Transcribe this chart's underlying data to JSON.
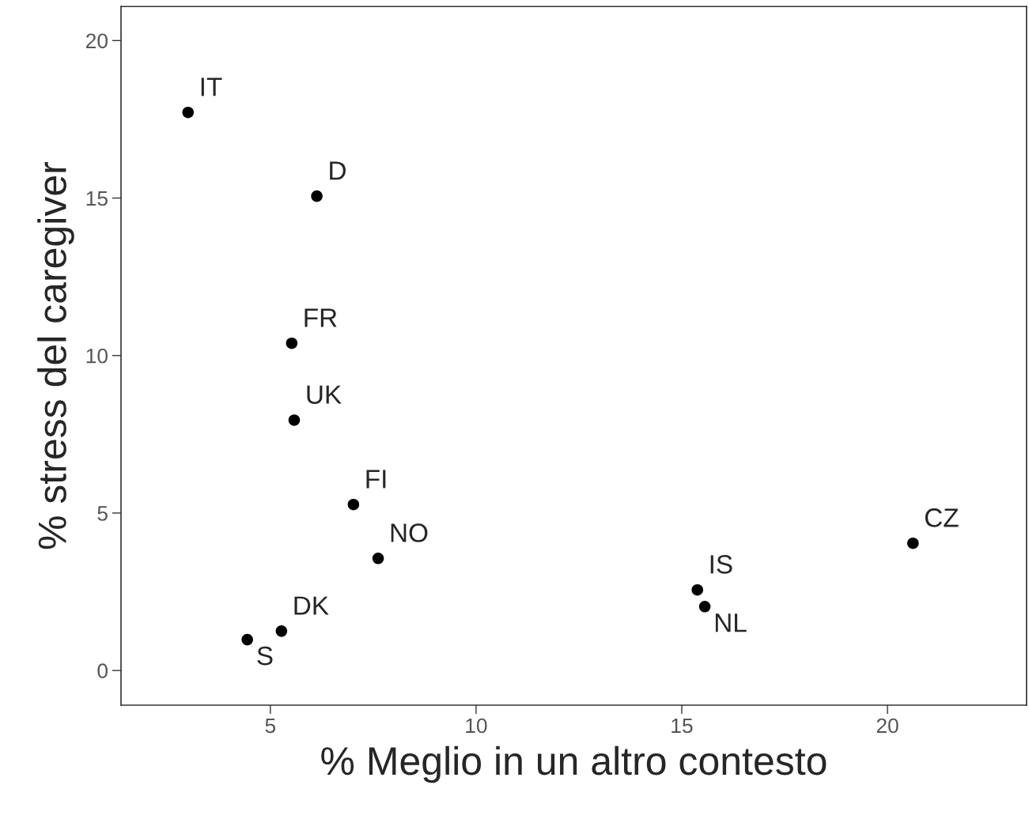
{
  "chart_data": {
    "type": "scatter",
    "xlabel": "% Meglio in un altro contesto",
    "ylabel": "% stress del caregiver",
    "x": [
      3.0,
      6.13,
      5.52,
      5.58,
      7.02,
      7.62,
      5.27,
      4.44,
      15.38,
      15.56,
      20.62
    ],
    "series": [
      {
        "color": "#000000",
        "values": [
          17.72,
          15.06,
          10.39,
          7.95,
          5.27,
          3.56,
          1.25,
          0.98,
          2.56,
          2.03,
          4.04
        ]
      }
    ],
    "annotations": [
      {
        "text": "IT",
        "x": 3.0,
        "y": 17.72
      },
      {
        "text": "D",
        "x": 6.13,
        "y": 15.06
      },
      {
        "text": "FR",
        "x": 5.52,
        "y": 10.39
      },
      {
        "text": "UK",
        "x": 5.58,
        "y": 7.95
      },
      {
        "text": "FI",
        "x": 7.02,
        "y": 5.27
      },
      {
        "text": "NO",
        "x": 7.62,
        "y": 3.56
      },
      {
        "text": "DK",
        "x": 5.27,
        "y": 1.25
      },
      {
        "text": "S",
        "x": 4.44,
        "y": 0.98
      },
      {
        "text": "IS",
        "x": 15.38,
        "y": 2.56
      },
      {
        "text": "NL",
        "x": 15.56,
        "y": 2.03
      },
      {
        "text": "CZ",
        "x": 20.62,
        "y": 4.04
      }
    ],
    "xlim": [
      1.37,
      23.38
    ],
    "ylim": [
      -1.1,
      21.08
    ],
    "xticks": [
      5,
      10,
      15,
      20
    ],
    "yticks": [
      0,
      5,
      10,
      15,
      20
    ],
    "grid": false,
    "marker": "circle"
  }
}
